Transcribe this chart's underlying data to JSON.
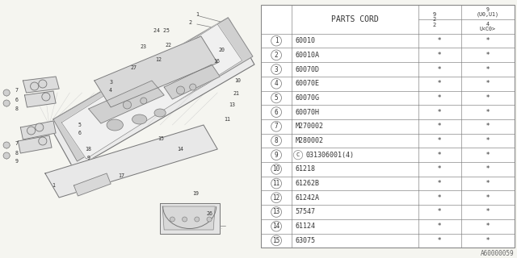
{
  "bg_color": "#f5f5f0",
  "table_bg": "#ffffff",
  "line_color": "#888888",
  "text_color": "#333333",
  "header_parts_cord": "PARTS CORD",
  "col_headers_left": [
    "9\n2\n2"
  ],
  "col_headers_right_top": "9\n(U0,U1)",
  "col_headers_right_bot": "4\nU<C0>",
  "parts": [
    {
      "num": "1",
      "code": "60010",
      "c1": "*",
      "c2": "*"
    },
    {
      "num": "2",
      "code": "60010A",
      "c1": "*",
      "c2": "*"
    },
    {
      "num": "3",
      "code": "60070D",
      "c1": "*",
      "c2": "*"
    },
    {
      "num": "4",
      "code": "60070E",
      "c1": "*",
      "c2": "*"
    },
    {
      "num": "5",
      "code": "60070G",
      "c1": "*",
      "c2": "*"
    },
    {
      "num": "6",
      "code": "60070H",
      "c1": "*",
      "c2": "*"
    },
    {
      "num": "7",
      "code": "M270002",
      "c1": "*",
      "c2": "*"
    },
    {
      "num": "8",
      "code": "M280002",
      "c1": "*",
      "c2": "*"
    },
    {
      "num": "9",
      "code": "031306001(4)",
      "c1": "*",
      "c2": "*",
      "circle_c": true
    },
    {
      "num": "10",
      "code": "61218",
      "c1": "*",
      "c2": "*"
    },
    {
      "num": "11",
      "code": "61262B",
      "c1": "*",
      "c2": "*"
    },
    {
      "num": "12",
      "code": "61242A",
      "c1": "*",
      "c2": "*"
    },
    {
      "num": "13",
      "code": "57547",
      "c1": "*",
      "c2": "*"
    },
    {
      "num": "14",
      "code": "61124",
      "c1": "*",
      "c2": "*"
    },
    {
      "num": "15",
      "code": "63075",
      "c1": "*",
      "c2": "*"
    }
  ],
  "footer_code": "A60000059",
  "font_size": 6.0,
  "header_font_size": 7.0,
  "diag_labels": [
    [
      240,
      18,
      "1"
    ],
    [
      232,
      28,
      "2"
    ],
    [
      270,
      62,
      "20"
    ],
    [
      264,
      76,
      "16"
    ],
    [
      290,
      100,
      "10"
    ],
    [
      288,
      116,
      "21"
    ],
    [
      283,
      130,
      "13"
    ],
    [
      277,
      148,
      "11"
    ],
    [
      197,
      38,
      "24 25"
    ],
    [
      175,
      58,
      "23"
    ],
    [
      205,
      56,
      "22"
    ],
    [
      193,
      74,
      "12"
    ],
    [
      163,
      84,
      "27"
    ],
    [
      135,
      102,
      "3"
    ],
    [
      135,
      112,
      "4"
    ],
    [
      20,
      112,
      "7"
    ],
    [
      20,
      124,
      "6"
    ],
    [
      20,
      135,
      "8"
    ],
    [
      20,
      178,
      "7"
    ],
    [
      20,
      190,
      "8"
    ],
    [
      20,
      200,
      "9"
    ],
    [
      97,
      155,
      "5"
    ],
    [
      97,
      165,
      "6"
    ],
    [
      108,
      185,
      "18"
    ],
    [
      108,
      196,
      "9"
    ],
    [
      196,
      172,
      "15"
    ],
    [
      220,
      185,
      "14"
    ],
    [
      148,
      218,
      "17"
    ],
    [
      238,
      240,
      "19"
    ],
    [
      65,
      230,
      "1"
    ],
    [
      255,
      265,
      "26"
    ]
  ]
}
